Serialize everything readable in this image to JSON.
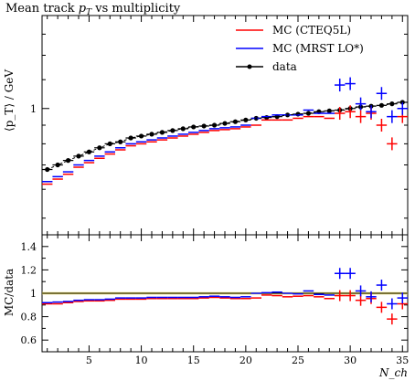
{
  "chart_data": {
    "type": "scatter",
    "title_main": "Mean track ",
    "title_var": "p",
    "title_sub": "T",
    "title_tail": " vs multiplicity",
    "ylabel": "⟨p_T⟩ / GeV",
    "xlabel": "N_ch",
    "ratio_ylabel": "MC/data",
    "x_ticks": [
      5,
      10,
      15,
      20,
      25,
      30,
      35
    ],
    "main_y_tick_label": "1",
    "ratio_y_ticks": [
      "0.6",
      "0.8",
      "1",
      "1.2",
      "1.4"
    ],
    "xlim": [
      0.5,
      35.5
    ],
    "ylim_main_log": [
      0.45,
      1.8
    ],
    "ylim_ratio": [
      0.5,
      1.5
    ],
    "legend": [
      {
        "name": "MC (CTEQ5L)",
        "color": "#ff0000"
      },
      {
        "name": "MC (MRST LO*)",
        "color": "#0000ff"
      },
      {
        "name": "data",
        "color": "#000000"
      }
    ],
    "series": [
      {
        "name": "data",
        "color": "#000000",
        "x": [
          1,
          2,
          3,
          4,
          5,
          6,
          7,
          8,
          9,
          10,
          11,
          12,
          13,
          14,
          15,
          16,
          17,
          18,
          19,
          20,
          21,
          22,
          23,
          24,
          25,
          26,
          27,
          28,
          29,
          30,
          31,
          32,
          33,
          34,
          35
        ],
        "values": [
          0.68,
          0.7,
          0.72,
          0.74,
          0.76,
          0.78,
          0.8,
          0.81,
          0.83,
          0.84,
          0.85,
          0.86,
          0.87,
          0.88,
          0.89,
          0.895,
          0.9,
          0.91,
          0.92,
          0.93,
          0.94,
          0.945,
          0.95,
          0.96,
          0.965,
          0.97,
          0.98,
          0.985,
          0.99,
          1.0,
          1.01,
          1.015,
          1.02,
          1.03,
          1.04
        ]
      },
      {
        "name": "MC (CTEQ5L)",
        "color": "#ff0000",
        "x": [
          1,
          2,
          3,
          4,
          5,
          6,
          7,
          8,
          9,
          10,
          11,
          12,
          13,
          14,
          15,
          16,
          17,
          18,
          19,
          20,
          21,
          22,
          23,
          24,
          25,
          26,
          27,
          28,
          29,
          30,
          31,
          32,
          33,
          34,
          35
        ],
        "values": [
          0.62,
          0.64,
          0.66,
          0.69,
          0.71,
          0.73,
          0.75,
          0.77,
          0.79,
          0.8,
          0.81,
          0.82,
          0.83,
          0.84,
          0.85,
          0.86,
          0.87,
          0.875,
          0.88,
          0.89,
          0.9,
          0.93,
          0.93,
          0.93,
          0.94,
          0.95,
          0.95,
          0.94,
          0.97,
          0.98,
          0.95,
          0.97,
          0.9,
          0.8,
          0.95
        ],
        "ratio": [
          0.91,
          0.91,
          0.92,
          0.93,
          0.935,
          0.935,
          0.94,
          0.95,
          0.95,
          0.95,
          0.955,
          0.955,
          0.955,
          0.955,
          0.955,
          0.96,
          0.965,
          0.96,
          0.955,
          0.955,
          0.96,
          0.985,
          0.98,
          0.97,
          0.975,
          0.98,
          0.97,
          0.955,
          0.98,
          0.98,
          0.94,
          0.955,
          0.88,
          0.78,
          0.91
        ]
      },
      {
        "name": "MC (MRST LO*)",
        "color": "#0000ff",
        "x": [
          1,
          2,
          3,
          4,
          5,
          6,
          7,
          8,
          9,
          10,
          11,
          12,
          13,
          14,
          15,
          16,
          17,
          18,
          19,
          20,
          21,
          22,
          23,
          24,
          25,
          26,
          27,
          28,
          29,
          30,
          31,
          32,
          33,
          34,
          35
        ],
        "values": [
          0.63,
          0.65,
          0.67,
          0.7,
          0.72,
          0.74,
          0.76,
          0.78,
          0.8,
          0.81,
          0.82,
          0.83,
          0.84,
          0.85,
          0.86,
          0.87,
          0.88,
          0.885,
          0.89,
          0.9,
          0.94,
          0.95,
          0.96,
          0.96,
          0.96,
          0.99,
          0.97,
          0.97,
          1.16,
          1.17,
          1.03,
          0.98,
          1.1,
          0.95,
          1.0
        ],
        "ratio": [
          0.92,
          0.925,
          0.93,
          0.94,
          0.945,
          0.945,
          0.95,
          0.96,
          0.96,
          0.96,
          0.965,
          0.965,
          0.965,
          0.965,
          0.965,
          0.97,
          0.975,
          0.97,
          0.965,
          0.97,
          1.0,
          1.005,
          1.01,
          1.0,
          0.995,
          1.02,
          0.99,
          0.985,
          1.17,
          1.17,
          1.02,
          0.97,
          1.07,
          0.91,
          0.96
        ]
      }
    ]
  }
}
